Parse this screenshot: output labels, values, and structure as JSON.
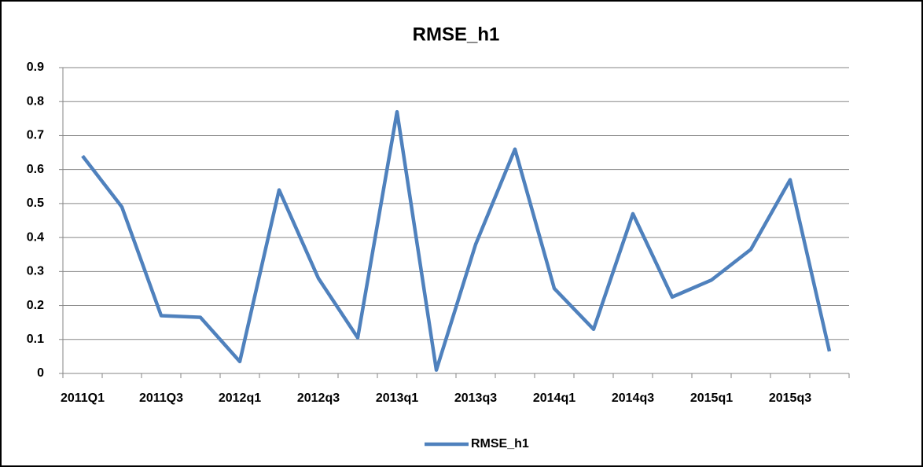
{
  "chart_data": {
    "type": "line",
    "title": "RMSE_h1",
    "categories": [
      "2011Q1",
      null,
      "2011Q3",
      null,
      "2012q1",
      null,
      "2012q3",
      null,
      "2013q1",
      null,
      "2013q3",
      null,
      "2014q1",
      null,
      "2014q3",
      null,
      "2015q1",
      null,
      "2015q3",
      null
    ],
    "series": [
      {
        "name": "RMSE_h1",
        "color": "#4f81bd",
        "values": [
          0.64,
          0.49,
          0.17,
          0.165,
          0.035,
          0.54,
          0.28,
          0.105,
          0.77,
          0.01,
          0.38,
          0.66,
          0.25,
          0.13,
          0.47,
          0.225,
          0.275,
          0.365,
          0.57,
          0.065
        ]
      }
    ],
    "ylim": [
      0,
      0.9
    ],
    "yticks": [
      0,
      0.1,
      0.2,
      0.3,
      0.4,
      0.5,
      0.6,
      0.7,
      0.8,
      0.9
    ],
    "grid": true,
    "legend": "bottom"
  }
}
